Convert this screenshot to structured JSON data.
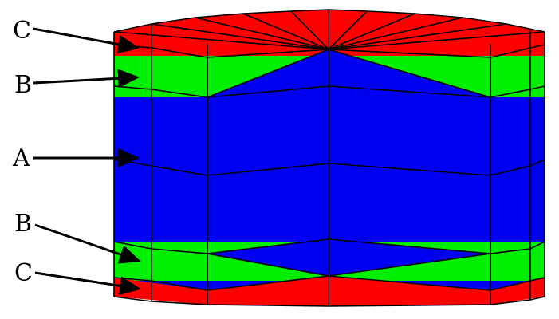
{
  "labels": [
    {
      "id": "top-c",
      "text": "C"
    },
    {
      "id": "top-b",
      "text": "B"
    },
    {
      "id": "middle-a",
      "text": "A"
    },
    {
      "id": "bottom-b",
      "text": "B"
    },
    {
      "id": "bottom-c",
      "text": "C"
    }
  ],
  "colors": {
    "region_a": "#0000f0",
    "region_b": "#00ee00",
    "region_c": "#ff0000",
    "edge": "#000000"
  }
}
